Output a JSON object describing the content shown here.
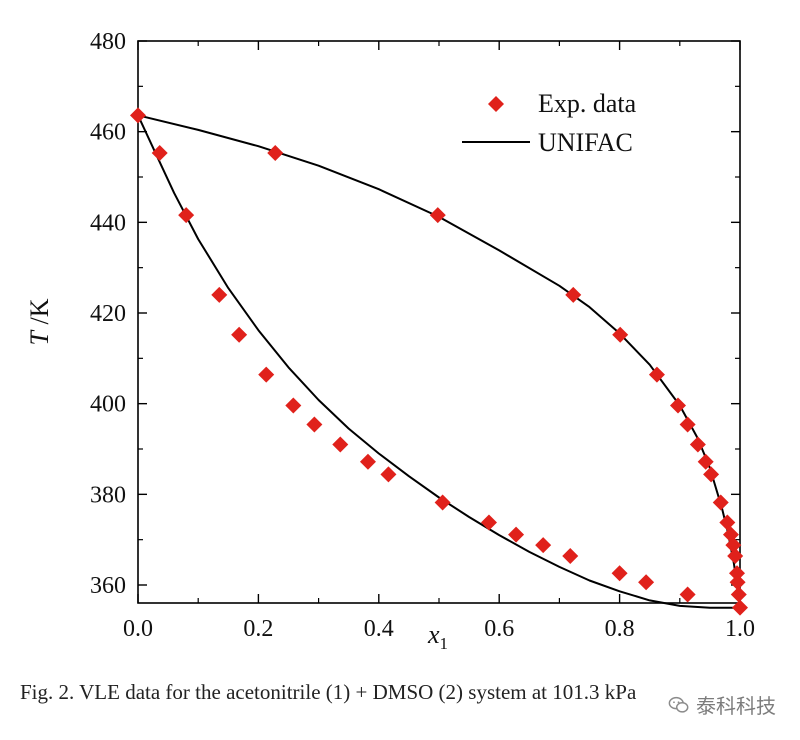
{
  "chart_data": {
    "type": "scatter",
    "title": "",
    "xlabel": "x1",
    "ylabel": "T /K",
    "xlim": [
      0.0,
      1.0
    ],
    "ylim": [
      350,
      480
    ],
    "xticks": [
      0.0,
      0.2,
      0.4,
      0.6,
      0.8,
      1.0
    ],
    "xtick_labels": [
      "0.0",
      "0.2",
      "0.4",
      "0.6",
      "0.8",
      "1.0"
    ],
    "yticks": [
      360,
      380,
      400,
      420,
      440,
      460,
      480
    ],
    "ytick_labels": [
      "360",
      "380",
      "400",
      "420",
      "440",
      "460",
      "480"
    ],
    "legend_position": "top-right",
    "marker_color": "#e0211b",
    "line_color": "#000000",
    "series": [
      {
        "name": "Exp. data",
        "kind": "markers",
        "points": [
          [
            0.0,
            463.6
          ],
          [
            0.036,
            455.3
          ],
          [
            0.08,
            441.6
          ],
          [
            0.135,
            424.0
          ],
          [
            0.168,
            415.2
          ],
          [
            0.213,
            406.4
          ],
          [
            0.258,
            399.6
          ],
          [
            0.293,
            395.4
          ],
          [
            0.336,
            391.0
          ],
          [
            0.382,
            387.2
          ],
          [
            0.416,
            384.4
          ],
          [
            0.506,
            378.2
          ],
          [
            0.583,
            373.8
          ],
          [
            0.628,
            371.1
          ],
          [
            0.673,
            368.8
          ],
          [
            0.718,
            366.4
          ],
          [
            0.8,
            362.6
          ],
          [
            0.844,
            360.6
          ],
          [
            0.913,
            357.9
          ],
          [
            0.228,
            455.3
          ],
          [
            0.498,
            441.6
          ],
          [
            0.723,
            424.0
          ],
          [
            0.801,
            415.2
          ],
          [
            0.862,
            406.4
          ],
          [
            0.897,
            399.6
          ],
          [
            0.913,
            395.4
          ],
          [
            0.93,
            391.0
          ],
          [
            0.943,
            387.2
          ],
          [
            0.952,
            384.4
          ],
          [
            0.968,
            378.2
          ],
          [
            0.979,
            373.8
          ],
          [
            0.985,
            371.1
          ],
          [
            0.989,
            368.8
          ],
          [
            0.992,
            366.4
          ],
          [
            0.995,
            362.6
          ],
          [
            0.996,
            360.6
          ],
          [
            0.998,
            357.9
          ],
          [
            1.0,
            355.0
          ]
        ]
      },
      {
        "name": "UNIFAC",
        "kind": "line",
        "curves": [
          [
            [
              0.0,
              463.6
            ],
            [
              0.03,
              455.0
            ],
            [
              0.06,
              446.5
            ],
            [
              0.1,
              436.3
            ],
            [
              0.15,
              425.5
            ],
            [
              0.2,
              416.2
            ],
            [
              0.25,
              408.0
            ],
            [
              0.3,
              400.8
            ],
            [
              0.35,
              394.5
            ],
            [
              0.4,
              389.0
            ],
            [
              0.45,
              384.0
            ],
            [
              0.5,
              379.3
            ],
            [
              0.55,
              375.0
            ],
            [
              0.6,
              371.0
            ],
            [
              0.65,
              367.3
            ],
            [
              0.7,
              364.0
            ],
            [
              0.75,
              361.0
            ],
            [
              0.8,
              358.6
            ],
            [
              0.85,
              356.6
            ],
            [
              0.9,
              355.4
            ],
            [
              0.95,
              355.0
            ],
            [
              1.0,
              355.0
            ]
          ],
          [
            [
              0.0,
              463.6
            ],
            [
              0.1,
              460.4
            ],
            [
              0.2,
              456.8
            ],
            [
              0.3,
              452.5
            ],
            [
              0.4,
              447.3
            ],
            [
              0.5,
              441.2
            ],
            [
              0.6,
              433.8
            ],
            [
              0.7,
              426.0
            ],
            [
              0.75,
              421.3
            ],
            [
              0.8,
              415.5
            ],
            [
              0.85,
              408.6
            ],
            [
              0.9,
              399.6
            ],
            [
              0.93,
              392.3
            ],
            [
              0.95,
              385.8
            ],
            [
              0.97,
              377.0
            ],
            [
              0.98,
              371.5
            ],
            [
              0.99,
              364.6
            ],
            [
              1.0,
              355.0
            ]
          ]
        ]
      }
    ]
  },
  "caption": "Fig. 2. VLE data for the acetonitrile (1) + DMSO (2) system at 101.3 kPa",
  "watermark": {
    "text": "泰科科技",
    "icon": "wechat-icon"
  }
}
